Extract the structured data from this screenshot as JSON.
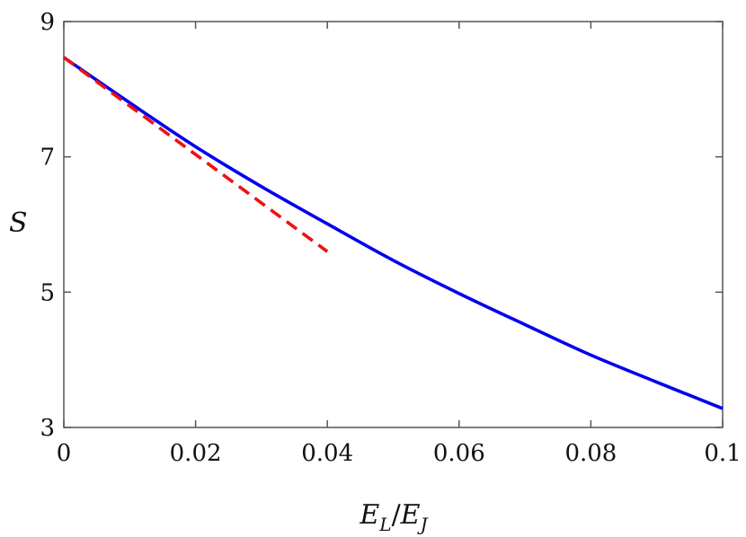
{
  "chart_data": {
    "type": "line",
    "title": "",
    "xlabel": {
      "main": "E",
      "sub1": "L",
      "slash": "/",
      "main2": "E",
      "sub2": "J"
    },
    "ylabel": "S",
    "xlim": [
      0,
      0.1
    ],
    "ylim": [
      3,
      9
    ],
    "x_ticks": [
      0,
      0.02,
      0.04,
      0.06,
      0.08,
      0.1
    ],
    "x_tick_labels": [
      "0",
      "0.02",
      "0.04",
      "0.06",
      "0.08",
      "0.1"
    ],
    "y_ticks": [
      3,
      5,
      7,
      9
    ],
    "y_tick_labels": [
      "3",
      "5",
      "7",
      "9"
    ],
    "grid": false,
    "series": [
      {
        "color": "#0000ee",
        "style": "solid",
        "x": [
          0,
          0.01,
          0.02,
          0.03,
          0.04,
          0.05,
          0.06,
          0.07,
          0.08,
          0.09,
          0.1
        ],
        "y": [
          8.47,
          7.8,
          7.15,
          6.56,
          6.01,
          5.47,
          4.98,
          4.52,
          4.07,
          3.67,
          3.28
        ]
      },
      {
        "color": "#ee1111",
        "style": "dashed",
        "x": [
          0,
          0.04
        ],
        "y": [
          8.47,
          5.6
        ]
      }
    ]
  }
}
